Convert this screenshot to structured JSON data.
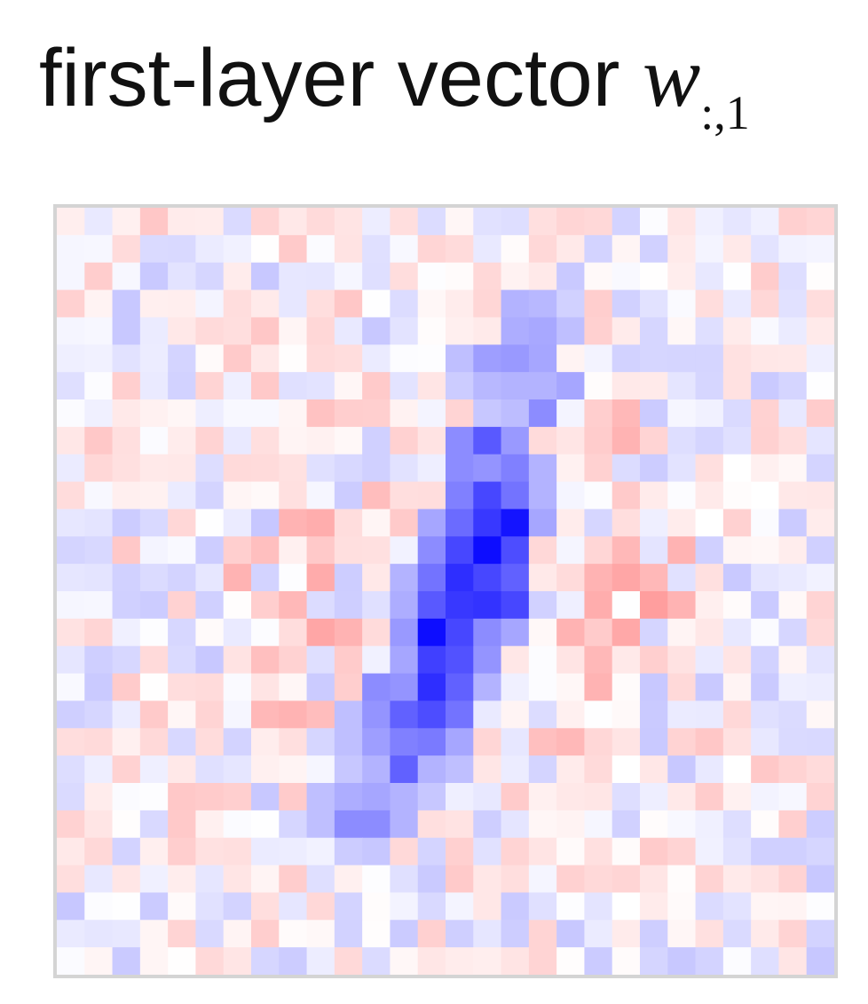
{
  "figure": {
    "title_text": "first-layer vector ",
    "title_math": "w",
    "title_subscript": ":,1"
  },
  "chart_data": {
    "type": "heatmap",
    "title": "first-layer vector w:,1",
    "rows": 28,
    "cols": 28,
    "colormap": {
      "negative": "#0000ff",
      "zero": "#ffffff",
      "positive": "#ff0000"
    },
    "value_range": [
      -1,
      1
    ],
    "base_noise_amplitude": 0.22,
    "stroke_cells": [
      {
        "r": 3,
        "c": 16,
        "v": -0.3
      },
      {
        "r": 3,
        "c": 17,
        "v": -0.28
      },
      {
        "r": 4,
        "c": 16,
        "v": -0.32
      },
      {
        "r": 4,
        "c": 17,
        "v": -0.34
      },
      {
        "r": 4,
        "c": 18,
        "v": -0.25
      },
      {
        "r": 5,
        "c": 14,
        "v": -0.25
      },
      {
        "r": 5,
        "c": 15,
        "v": -0.38
      },
      {
        "r": 5,
        "c": 16,
        "v": -0.4
      },
      {
        "r": 5,
        "c": 17,
        "v": -0.35
      },
      {
        "r": 6,
        "c": 14,
        "v": -0.2
      },
      {
        "r": 6,
        "c": 15,
        "v": -0.28
      },
      {
        "r": 6,
        "c": 16,
        "v": -0.3
      },
      {
        "r": 6,
        "c": 17,
        "v": -0.3
      },
      {
        "r": 6,
        "c": 18,
        "v": -0.35
      },
      {
        "r": 7,
        "c": 15,
        "v": -0.22
      },
      {
        "r": 7,
        "c": 16,
        "v": -0.26
      },
      {
        "r": 7,
        "c": 17,
        "v": -0.45
      },
      {
        "r": 8,
        "c": 14,
        "v": -0.45
      },
      {
        "r": 8,
        "c": 15,
        "v": -0.65
      },
      {
        "r": 8,
        "c": 16,
        "v": -0.4
      },
      {
        "r": 9,
        "c": 14,
        "v": -0.45
      },
      {
        "r": 9,
        "c": 15,
        "v": -0.42
      },
      {
        "r": 9,
        "c": 16,
        "v": -0.5
      },
      {
        "r": 9,
        "c": 17,
        "v": -0.3
      },
      {
        "r": 10,
        "c": 14,
        "v": -0.5
      },
      {
        "r": 10,
        "c": 15,
        "v": -0.72
      },
      {
        "r": 10,
        "c": 16,
        "v": -0.55
      },
      {
        "r": 10,
        "c": 17,
        "v": -0.3
      },
      {
        "r": 11,
        "c": 13,
        "v": -0.35
      },
      {
        "r": 11,
        "c": 14,
        "v": -0.58
      },
      {
        "r": 11,
        "c": 15,
        "v": -0.78
      },
      {
        "r": 11,
        "c": 16,
        "v": -0.92
      },
      {
        "r": 11,
        "c": 17,
        "v": -0.35
      },
      {
        "r": 12,
        "c": 13,
        "v": -0.45
      },
      {
        "r": 12,
        "c": 14,
        "v": -0.72
      },
      {
        "r": 12,
        "c": 15,
        "v": -0.95
      },
      {
        "r": 12,
        "c": 16,
        "v": -0.7
      },
      {
        "r": 13,
        "c": 12,
        "v": -0.3
      },
      {
        "r": 13,
        "c": 13,
        "v": -0.55
      },
      {
        "r": 13,
        "c": 14,
        "v": -0.82
      },
      {
        "r": 13,
        "c": 15,
        "v": -0.72
      },
      {
        "r": 13,
        "c": 16,
        "v": -0.62
      },
      {
        "r": 14,
        "c": 12,
        "v": -0.32
      },
      {
        "r": 14,
        "c": 13,
        "v": -0.65
      },
      {
        "r": 14,
        "c": 14,
        "v": -0.78
      },
      {
        "r": 14,
        "c": 15,
        "v": -0.8
      },
      {
        "r": 14,
        "c": 16,
        "v": -0.72
      },
      {
        "r": 15,
        "c": 12,
        "v": -0.4
      },
      {
        "r": 15,
        "c": 13,
        "v": -0.95
      },
      {
        "r": 15,
        "c": 14,
        "v": -0.72
      },
      {
        "r": 15,
        "c": 15,
        "v": -0.45
      },
      {
        "r": 15,
        "c": 16,
        "v": -0.35
      },
      {
        "r": 16,
        "c": 12,
        "v": -0.35
      },
      {
        "r": 16,
        "c": 13,
        "v": -0.75
      },
      {
        "r": 16,
        "c": 14,
        "v": -0.68
      },
      {
        "r": 16,
        "c": 15,
        "v": -0.42
      },
      {
        "r": 17,
        "c": 11,
        "v": -0.45
      },
      {
        "r": 17,
        "c": 12,
        "v": -0.42
      },
      {
        "r": 17,
        "c": 13,
        "v": -0.82
      },
      {
        "r": 17,
        "c": 14,
        "v": -0.62
      },
      {
        "r": 17,
        "c": 15,
        "v": -0.3
      },
      {
        "r": 18,
        "c": 10,
        "v": -0.25
      },
      {
        "r": 18,
        "c": 11,
        "v": -0.42
      },
      {
        "r": 18,
        "c": 12,
        "v": -0.62
      },
      {
        "r": 18,
        "c": 13,
        "v": -0.7
      },
      {
        "r": 18,
        "c": 14,
        "v": -0.55
      },
      {
        "r": 19,
        "c": 10,
        "v": -0.25
      },
      {
        "r": 19,
        "c": 11,
        "v": -0.38
      },
      {
        "r": 19,
        "c": 12,
        "v": -0.5
      },
      {
        "r": 19,
        "c": 13,
        "v": -0.52
      },
      {
        "r": 19,
        "c": 14,
        "v": -0.35
      },
      {
        "r": 20,
        "c": 10,
        "v": -0.22
      },
      {
        "r": 20,
        "c": 11,
        "v": -0.3
      },
      {
        "r": 20,
        "c": 12,
        "v": -0.62
      },
      {
        "r": 20,
        "c": 13,
        "v": -0.3
      },
      {
        "r": 20,
        "c": 14,
        "v": -0.25
      },
      {
        "r": 21,
        "c": 9,
        "v": -0.25
      },
      {
        "r": 21,
        "c": 10,
        "v": -0.32
      },
      {
        "r": 21,
        "c": 11,
        "v": -0.35
      },
      {
        "r": 21,
        "c": 12,
        "v": -0.3
      },
      {
        "r": 21,
        "c": 13,
        "v": -0.22
      },
      {
        "r": 22,
        "c": 9,
        "v": -0.25
      },
      {
        "r": 22,
        "c": 10,
        "v": -0.45
      },
      {
        "r": 22,
        "c": 11,
        "v": -0.45
      },
      {
        "r": 22,
        "c": 12,
        "v": -0.3
      },
      {
        "r": 23,
        "c": 10,
        "v": -0.2
      },
      {
        "r": 23,
        "c": 11,
        "v": -0.22
      }
    ],
    "positive_cells": [
      {
        "r": 11,
        "c": 8,
        "v": 0.3
      },
      {
        "r": 11,
        "c": 9,
        "v": 0.32
      },
      {
        "r": 12,
        "c": 7,
        "v": 0.25
      },
      {
        "r": 13,
        "c": 6,
        "v": 0.3
      },
      {
        "r": 13,
        "c": 9,
        "v": 0.33
      },
      {
        "r": 14,
        "c": 8,
        "v": 0.28
      },
      {
        "r": 15,
        "c": 9,
        "v": 0.35
      },
      {
        "r": 15,
        "c": 10,
        "v": 0.3
      },
      {
        "r": 16,
        "c": 7,
        "v": 0.25
      },
      {
        "r": 18,
        "c": 7,
        "v": 0.28
      },
      {
        "r": 18,
        "c": 8,
        "v": 0.3
      },
      {
        "r": 18,
        "c": 9,
        "v": 0.26
      },
      {
        "r": 13,
        "c": 19,
        "v": 0.3
      },
      {
        "r": 13,
        "c": 20,
        "v": 0.35
      },
      {
        "r": 13,
        "c": 21,
        "v": 0.28
      },
      {
        "r": 14,
        "c": 19,
        "v": 0.32
      },
      {
        "r": 14,
        "c": 21,
        "v": 0.38
      },
      {
        "r": 14,
        "c": 22,
        "v": 0.3
      },
      {
        "r": 15,
        "c": 18,
        "v": 0.3
      },
      {
        "r": 15,
        "c": 20,
        "v": 0.34
      },
      {
        "r": 16,
        "c": 19,
        "v": 0.28
      },
      {
        "r": 12,
        "c": 20,
        "v": 0.28
      },
      {
        "r": 12,
        "c": 22,
        "v": 0.3
      },
      {
        "r": 8,
        "c": 20,
        "v": 0.3
      },
      {
        "r": 7,
        "c": 20,
        "v": 0.28
      },
      {
        "r": 17,
        "c": 19,
        "v": 0.3
      },
      {
        "r": 19,
        "c": 17,
        "v": 0.25
      },
      {
        "r": 19,
        "c": 18,
        "v": 0.28
      },
      {
        "r": 10,
        "c": 11,
        "v": 0.26
      },
      {
        "r": 7,
        "c": 9,
        "v": 0.24
      }
    ]
  }
}
